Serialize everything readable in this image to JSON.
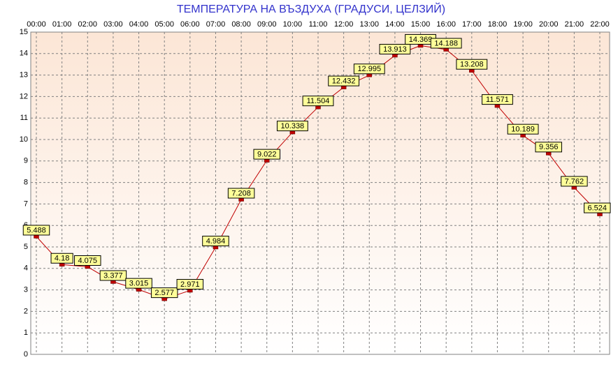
{
  "chart_data": {
    "type": "line",
    "title": "ТЕМПЕРАТУРА НА ВЪЗДУХА  (ГРАДУСИ, ЦЕЛЗИЙ)",
    "categories": [
      "00:00",
      "01:00",
      "02:00",
      "03:00",
      "04:00",
      "05:00",
      "06:00",
      "07:00",
      "08:00",
      "09:00",
      "10:00",
      "11:00",
      "12:00",
      "13:00",
      "14:00",
      "15:00",
      "16:00",
      "17:00",
      "18:00",
      "19:00",
      "20:00",
      "21:00",
      "22:00"
    ],
    "series": [
      {
        "name": "",
        "color": "#c00000",
        "values": [
          5.488,
          4.18,
          4.075,
          3.377,
          3.015,
          2.577,
          2.971,
          4.984,
          7.208,
          9.022,
          10.338,
          11.504,
          12.432,
          12.995,
          13.913,
          14.369,
          14.188,
          13.208,
          11.571,
          10.189,
          9.356,
          7.762,
          6.524
        ]
      }
    ],
    "ylim": [
      0,
      15
    ],
    "yticks": [
      0,
      1,
      2,
      3,
      4,
      5,
      6,
      7,
      8,
      9,
      10,
      11,
      12,
      13,
      14,
      15
    ],
    "grid": true
  }
}
